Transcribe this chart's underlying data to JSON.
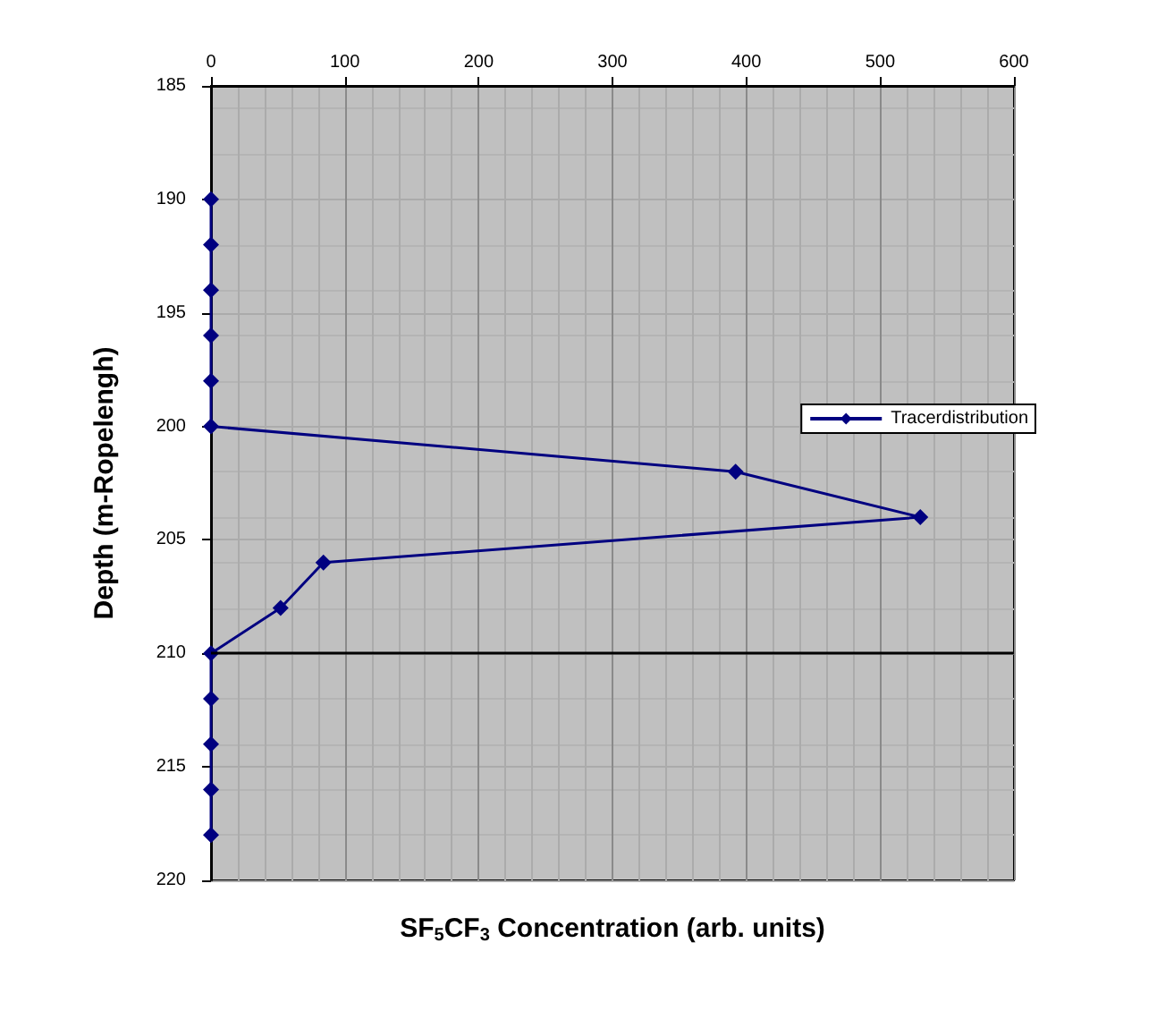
{
  "chart_data": {
    "type": "line",
    "xlabel": "SF$_{5}$CF$_{3}$ Concentration (arb. units)",
    "ylabel": "Depth (m-Ropelengh)",
    "series": [
      {
        "name": "Tracerdistribution",
        "color": "#000080",
        "x": [
          0,
          0,
          0,
          0,
          0,
          0,
          392,
          530,
          84,
          52,
          0,
          0,
          0,
          0,
          0
        ],
        "values": [
          190,
          192,
          194,
          196,
          198,
          200,
          202,
          204,
          206,
          208,
          210,
          212,
          214,
          216,
          218
        ]
      }
    ],
    "xlim": [
      0,
      600
    ],
    "xticks": [
      0,
      100,
      200,
      300,
      400,
      500,
      600
    ],
    "ylim": [
      220,
      185
    ],
    "yticks": [
      185,
      190,
      195,
      200,
      205,
      210,
      215,
      220
    ],
    "ref_lines": [
      {
        "axis": "y",
        "value": 210,
        "color": "#000000"
      }
    ],
    "grid": true,
    "legend": "right",
    "marker": "diamond",
    "line_style": "solid"
  }
}
